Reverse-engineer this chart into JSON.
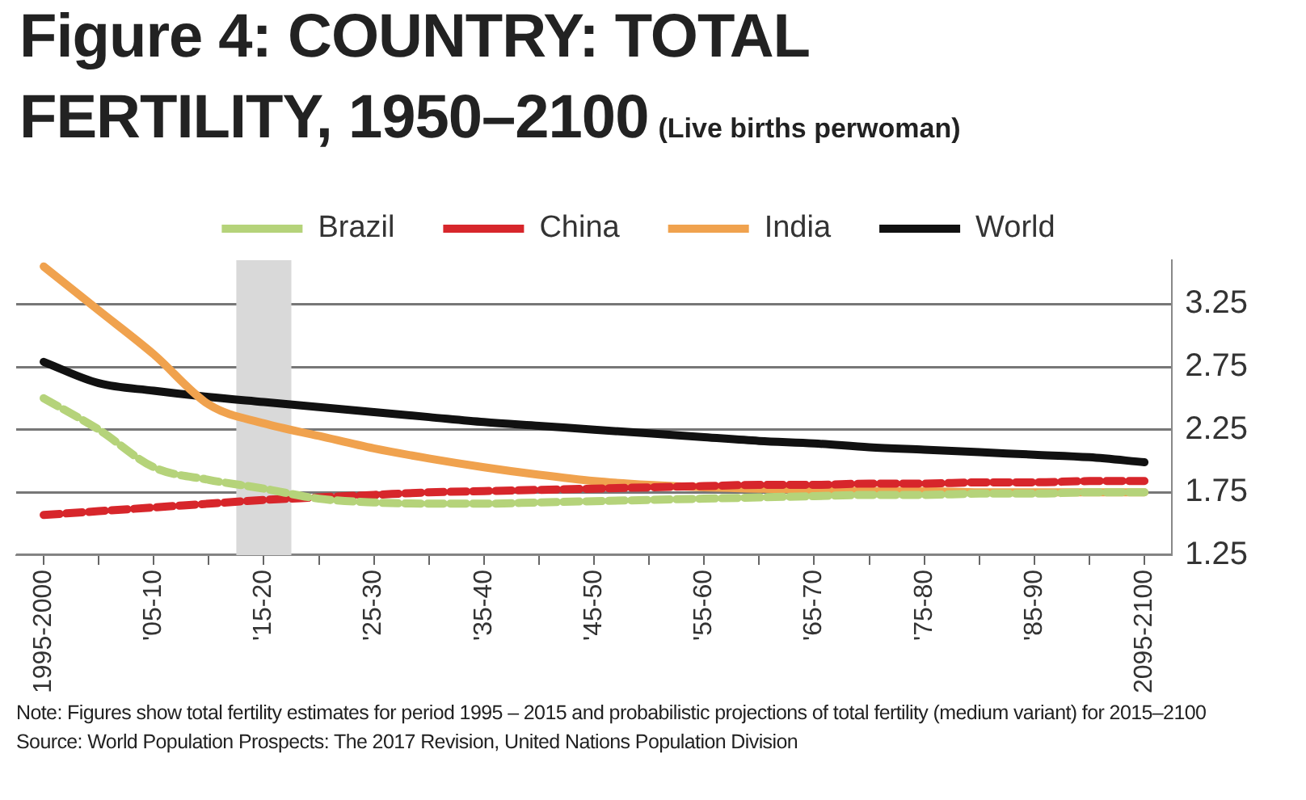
{
  "chart_data": {
    "type": "line",
    "title": "Figure 4: COUNTRY: TOTAL FERTILITY, 1950–2100",
    "subtitle": "(Live births perwoman)",
    "categories": [
      "1995-2000",
      null,
      "'05-10",
      null,
      "'15-20",
      null,
      "'25-30",
      null,
      "'35-40",
      null,
      "'45-50",
      null,
      "'55-60",
      null,
      "'65-70",
      null,
      "'75-80",
      null,
      "'85-90",
      null,
      "2095-2100"
    ],
    "series": [
      {
        "name": "Brazil",
        "color": "#b5d37a",
        "line_style": "dashed",
        "values": [
          2.5,
          2.25,
          1.95,
          1.85,
          1.78,
          1.7,
          1.67,
          1.66,
          1.66,
          1.67,
          1.68,
          1.69,
          1.7,
          1.71,
          1.72,
          1.73,
          1.73,
          1.74,
          1.74,
          1.75,
          1.75
        ]
      },
      {
        "name": "China",
        "color": "#d7262b",
        "line_style": "dashed",
        "values": [
          1.57,
          1.6,
          1.63,
          1.66,
          1.69,
          1.71,
          1.73,
          1.75,
          1.76,
          1.77,
          1.78,
          1.79,
          1.8,
          1.81,
          1.81,
          1.82,
          1.82,
          1.83,
          1.83,
          1.84,
          1.84
        ]
      },
      {
        "name": "India",
        "color": "#f0a24e",
        "line_style": "solid",
        "values": [
          3.55,
          3.2,
          2.85,
          2.45,
          2.3,
          2.2,
          2.1,
          2.02,
          1.95,
          1.89,
          1.84,
          1.81,
          1.79,
          1.78,
          1.77,
          1.76,
          1.76,
          1.75,
          1.75,
          1.75,
          1.75
        ]
      },
      {
        "name": "World",
        "color": "#111111",
        "line_style": "solid",
        "values": [
          2.79,
          2.62,
          2.56,
          2.51,
          2.47,
          2.43,
          2.39,
          2.35,
          2.31,
          2.28,
          2.25,
          2.22,
          2.19,
          2.16,
          2.14,
          2.11,
          2.09,
          2.07,
          2.05,
          2.03,
          1.99
        ]
      }
    ],
    "ylim": [
      1.25,
      3.6
    ],
    "yticks": [
      1.25,
      1.75,
      2.25,
      2.75,
      3.25
    ],
    "grid": "y",
    "legend": "top",
    "marker": "none",
    "bands": [
      {
        "axis": "x",
        "from": "'15-20",
        "to": "'15-20",
        "color": "#d9d9d9"
      }
    ],
    "annotations": [
      "Note: Figures show total fertility estimates for period 1995 – 2015 and probabilistic projections of total fertility (medium variant) for 2015–2100",
      "Source: World Population Prospects: The 2017 Revision, United Nations Population Division"
    ]
  }
}
